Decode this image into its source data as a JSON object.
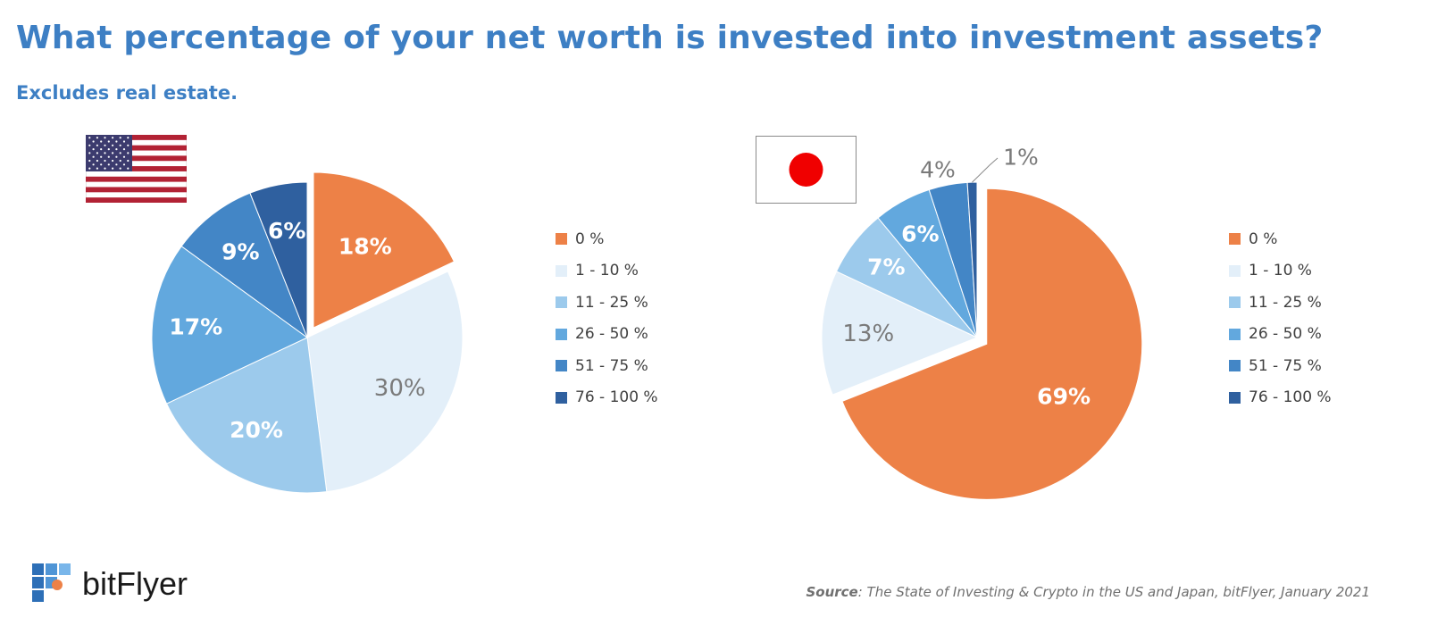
{
  "title": "What percentage of your net worth is invested into investment assets?",
  "subtitle": "Excludes real estate.",
  "categories": [
    "0 %",
    "1 - 10 %",
    "11 - 25 %",
    "26 - 50 %",
    "51 - 75 %",
    "76 - 100 %"
  ],
  "colors": [
    "#ed8147",
    "#e3eff9",
    "#9ccaec",
    "#62a8de",
    "#4386c6",
    "#2f609f"
  ],
  "chart_data": [
    {
      "type": "pie",
      "flag": "us-flag-icon",
      "categories": [
        "0 %",
        "1 - 10 %",
        "11 - 25 %",
        "26 - 50 %",
        "51 - 75 %",
        "76 - 100 %"
      ],
      "values": [
        18,
        30,
        20,
        17,
        9,
        6
      ],
      "data_labels": [
        "18%",
        "30%",
        "20%",
        "17%",
        "9%",
        "6%"
      ],
      "exploded_slice": "0 %",
      "legend_placement": "right"
    },
    {
      "type": "pie",
      "flag": "japan-flag-icon",
      "categories": [
        "0 %",
        "1 - 10 %",
        "11 - 25 %",
        "26 - 50 %",
        "51 - 75 %",
        "76 - 100 %"
      ],
      "values": [
        69,
        13,
        7,
        6,
        4,
        1
      ],
      "data_labels": [
        "69%",
        "13%",
        "7%",
        "6%",
        "4%",
        "1%"
      ],
      "exploded_slice": "0 %",
      "legend_placement": "right"
    }
  ],
  "logo": {
    "text": "bitFlyer",
    "icon": "bitflyer-logo-icon"
  },
  "source": {
    "label": "Source",
    "text": ": The State of Investing & Crypto in the US and Japan, bitFlyer, January 2021"
  }
}
